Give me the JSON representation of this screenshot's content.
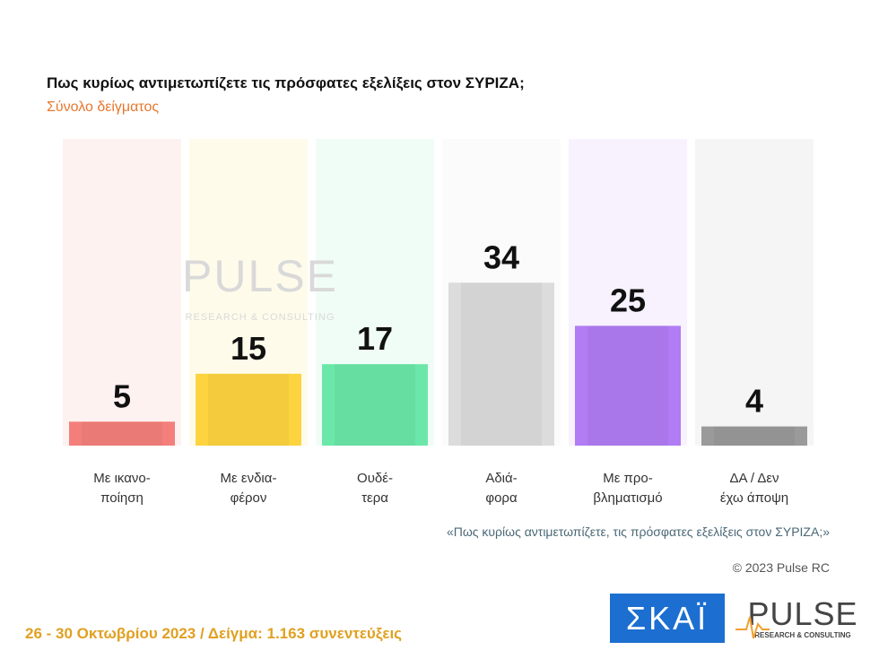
{
  "chart_data": {
    "type": "bar",
    "title": "Πως κυρίως αντιμετωπίζετε τις πρόσφατες εξελίξεις στον ΣΥΡΙΖΑ;",
    "subtitle": "Σύνολο δείγματος",
    "categories": [
      [
        "Με ικανο-",
        "ποίηση"
      ],
      [
        "Με ενδια-",
        "φέρον"
      ],
      [
        "Ουδέ-",
        "τερα"
      ],
      [
        "Αδιά-",
        "φορα"
      ],
      [
        "Με προ-",
        "βληματισμό"
      ],
      [
        "ΔΑ / Δεν",
        "έχω άποψη"
      ]
    ],
    "values": [
      5,
      15,
      17,
      34,
      25,
      4
    ],
    "colors": [
      "#f47f7a",
      "#fdd43f",
      "#6be8a9",
      "#dcdcdc",
      "#b17cf4",
      "#9a9a9a"
    ],
    "ylim": [
      0,
      64
    ],
    "note": "«Πως κυρίως αντιμετωπίζετε, τις πρόσφατες εξελίξεις στον ΣΥΡΙΖΑ;»",
    "copyright": "© 2023 Pulse RC",
    "footer": "26 - 30  Οκτωβρίου  2023  /  Δείγμα:  1.163 συνεντεύξεις",
    "watermark": {
      "name": "PULSE",
      "tagline": "RESEARCH & CONSULTING"
    },
    "logos": {
      "skai": "ΣΚΑΪ",
      "pulse": "PULSE",
      "pulse_tagline": "RESEARCH & CONSULTING"
    }
  }
}
